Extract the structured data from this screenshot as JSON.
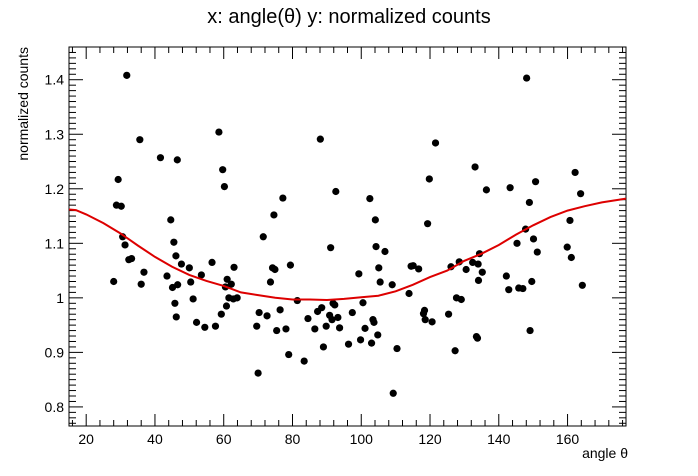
{
  "chart_data": {
    "type": "scatter",
    "title": "x: angle(θ) y: normalized counts",
    "xlabel": "angle θ",
    "ylabel": "normalized counts",
    "xlim": [
      15,
      177
    ],
    "ylim": [
      0.765,
      1.46
    ],
    "x_ticks": [
      20,
      40,
      60,
      80,
      100,
      120,
      140,
      160
    ],
    "y_ticks": [
      0.8,
      0.9,
      1.0,
      1.1,
      1.2,
      1.3,
      1.4
    ],
    "x_tick_labels": [
      "20",
      "40",
      "60",
      "80",
      "100",
      "120",
      "140",
      "160"
    ],
    "y_tick_labels": [
      "0.8",
      "0.9",
      "1",
      "1.1",
      "1.2",
      "1.3",
      "1.4"
    ],
    "grid": false,
    "legend": "none",
    "marker_color": "#000000",
    "series": [
      {
        "values_xy": [
          [
            28,
            1.03
          ],
          [
            28.8,
            1.17
          ],
          [
            29.3,
            1.217
          ],
          [
            30.2,
            1.168
          ],
          [
            30.6,
            1.112
          ],
          [
            31.3,
            1.097
          ],
          [
            31.8,
            1.408
          ],
          [
            32.4,
            1.07
          ],
          [
            33.2,
            1.072
          ],
          [
            35.6,
            1.29
          ],
          [
            36,
            1.025
          ],
          [
            36.8,
            1.047
          ],
          [
            41.6,
            1.257
          ],
          [
            43.5,
            1.04
          ],
          [
            44.6,
            1.143
          ],
          [
            45.1,
            1.019
          ],
          [
            45.5,
            1.102
          ],
          [
            45.8,
            0.99
          ],
          [
            46.1,
            1.077
          ],
          [
            46.2,
            0.965
          ],
          [
            46.5,
            1.253
          ],
          [
            46.6,
            1.024
          ],
          [
            47.7,
            1.062
          ],
          [
            50,
            1.055
          ],
          [
            50.4,
            1.029
          ],
          [
            51.1,
            0.998
          ],
          [
            52.1,
            0.955
          ],
          [
            53.5,
            1.042
          ],
          [
            54.5,
            0.946
          ],
          [
            56.6,
            1.065
          ],
          [
            57.6,
            0.948
          ],
          [
            58.6,
            1.304
          ],
          [
            59.3,
            0.97
          ],
          [
            59.7,
            1.235
          ],
          [
            60.2,
            1.204
          ],
          [
            60.5,
            1.02
          ],
          [
            60.8,
            0.985
          ],
          [
            61,
            1.034
          ],
          [
            61.5,
            1
          ],
          [
            62.2,
            1.025
          ],
          [
            62.8,
            0.998
          ],
          [
            63,
            1.056
          ],
          [
            63.9,
            1
          ],
          [
            69.6,
            0.948
          ],
          [
            70,
            0.862
          ],
          [
            70.3,
            0.973
          ],
          [
            71.5,
            1.112
          ],
          [
            72.6,
            0.967
          ],
          [
            73.6,
            1.029
          ],
          [
            74.2,
            1.055
          ],
          [
            74.6,
            1.152
          ],
          [
            74.9,
            1.052
          ],
          [
            75.4,
            0.94
          ],
          [
            76.4,
            0.978
          ],
          [
            77.2,
            1.183
          ],
          [
            78.1,
            0.943
          ],
          [
            78.9,
            0.896
          ],
          [
            79.4,
            1.06
          ],
          [
            81.4,
            0.995
          ],
          [
            83.4,
            0.884
          ],
          [
            84.5,
            0.962
          ],
          [
            86.5,
            0.943
          ],
          [
            87.3,
            0.975
          ],
          [
            88.1,
            1.291
          ],
          [
            88.5,
            0.982
          ],
          [
            89,
            0.91
          ],
          [
            89.8,
            0.948
          ],
          [
            90.8,
            0.968
          ],
          [
            91.1,
            1.092
          ],
          [
            91.5,
            0.96
          ],
          [
            91.8,
            0.99
          ],
          [
            92.3,
            0.987
          ],
          [
            92.6,
            1.195
          ],
          [
            93.2,
            0.964
          ],
          [
            93.7,
            0.945
          ],
          [
            96.3,
            0.915
          ],
          [
            97.4,
            0.973
          ],
          [
            99.3,
            1.044
          ],
          [
            99.8,
            0.923
          ],
          [
            100.5,
            0.991
          ],
          [
            101.1,
            0.944
          ],
          [
            102.5,
            1.182
          ],
          [
            103,
            0.917
          ],
          [
            103.4,
            0.96
          ],
          [
            103.7,
            0.955
          ],
          [
            104.1,
            1.143
          ],
          [
            104.3,
            1.094
          ],
          [
            104.8,
            0.932
          ],
          [
            105.1,
            1.055
          ],
          [
            105.5,
            1.029
          ],
          [
            106.9,
            1.085
          ],
          [
            109,
            1.024
          ],
          [
            109.3,
            0.825
          ],
          [
            110.4,
            0.907
          ],
          [
            113.9,
            1.008
          ],
          [
            114.5,
            1.058
          ],
          [
            115.1,
            1.059
          ],
          [
            116.7,
            1.053
          ],
          [
            118.1,
            0.971
          ],
          [
            118.4,
            0.977
          ],
          [
            118.6,
            0.96
          ],
          [
            119.3,
            1.136
          ],
          [
            119.8,
            1.218
          ],
          [
            120.6,
            0.956
          ],
          [
            121.6,
            1.284
          ],
          [
            125.4,
            0.97
          ],
          [
            126.1,
            1.057
          ],
          [
            127.3,
            0.903
          ],
          [
            127.7,
            1.0
          ],
          [
            128.5,
            1.066
          ],
          [
            129.1,
            0.997
          ],
          [
            130.5,
            1.052
          ],
          [
            132.4,
            1.065
          ],
          [
            133.1,
            1.24
          ],
          [
            133.5,
            0.929
          ],
          [
            133.8,
            0.926
          ],
          [
            134,
            1.062
          ],
          [
            134.1,
            1.032
          ],
          [
            134.4,
            1.081
          ],
          [
            135.2,
            1.047
          ],
          [
            136.4,
            1.198
          ],
          [
            142.2,
            1.04
          ],
          [
            142.9,
            1.015
          ],
          [
            143.3,
            1.202
          ],
          [
            145.3,
            1.1
          ],
          [
            145.8,
            1.018
          ],
          [
            147,
            1.017
          ],
          [
            147.8,
            1.126
          ],
          [
            148.1,
            1.403
          ],
          [
            148.9,
            1.175
          ],
          [
            149.1,
            0.94
          ],
          [
            149.6,
            1.03
          ],
          [
            150.1,
            1.108
          ],
          [
            150.7,
            1.213
          ],
          [
            151.2,
            1.084
          ],
          [
            159.9,
            1.093
          ],
          [
            160.7,
            1.142
          ],
          [
            161.1,
            1.074
          ],
          [
            162.2,
            1.23
          ],
          [
            163.8,
            1.191
          ],
          [
            164.3,
            1.023
          ]
        ]
      },
      {
        "fit_line": true,
        "color": "#dd0000",
        "values_xy": [
          [
            15,
            1.162
          ],
          [
            17,
            1.161
          ],
          [
            20,
            1.153
          ],
          [
            25,
            1.137
          ],
          [
            30,
            1.118
          ],
          [
            35,
            1.096
          ],
          [
            40,
            1.075
          ],
          [
            45,
            1.057
          ],
          [
            50,
            1.042
          ],
          [
            55,
            1.031
          ],
          [
            60,
            1.022
          ],
          [
            65,
            1.01
          ],
          [
            70,
            1.005
          ],
          [
            75,
            1.0
          ],
          [
            80,
            0.997
          ],
          [
            85,
            0.997
          ],
          [
            90,
            0.996
          ],
          [
            95,
            0.998
          ],
          [
            100,
            1.001
          ],
          [
            105,
            1.004
          ],
          [
            110,
            1.012
          ],
          [
            115,
            1.024
          ],
          [
            120,
            1.038
          ],
          [
            125,
            1.05
          ],
          [
            130,
            1.068
          ],
          [
            135,
            1.081
          ],
          [
            140,
            1.097
          ],
          [
            145,
            1.116
          ],
          [
            150,
            1.133
          ],
          [
            155,
            1.148
          ],
          [
            160,
            1.16
          ],
          [
            165,
            1.168
          ],
          [
            170,
            1.175
          ],
          [
            177,
            1.182
          ]
        ]
      }
    ]
  }
}
